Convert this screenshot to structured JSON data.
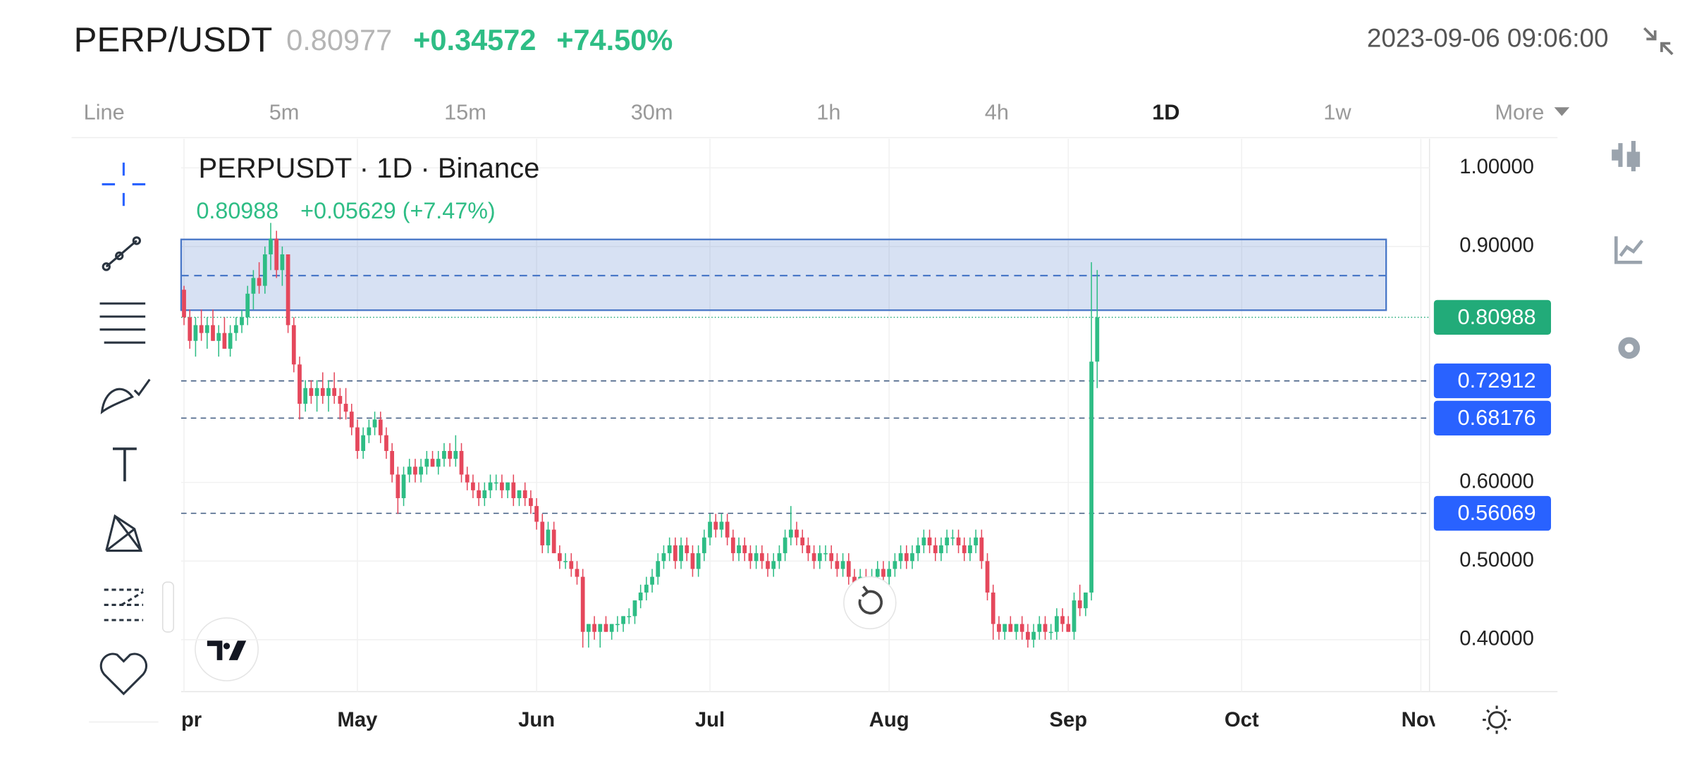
{
  "header": {
    "symbol": "PERP/USDT",
    "price": "0.80977",
    "change": "+0.34572",
    "change_pct": "+74.50%",
    "datetime": "2023-09-06 09:06:00"
  },
  "timeframes": {
    "items": [
      "Line",
      "5m",
      "15m",
      "30m",
      "1h",
      "4h",
      "1D",
      "1w",
      "More"
    ],
    "active": 6
  },
  "chart_data": {
    "type": "candlestick",
    "title": "PERPUSDT · 1D · Binance",
    "last": "0.80988",
    "last_change": "+0.05629 (+7.47%)",
    "up_color": "#2ebd85",
    "down_color": "#e5485c",
    "xlim": [
      -0.5,
      215.5
    ],
    "xticks": [
      {
        "value": 0,
        "label": "Apr"
      },
      {
        "value": 30,
        "label": "May"
      },
      {
        "value": 61,
        "label": "Jun"
      },
      {
        "value": 91,
        "label": "Jul"
      },
      {
        "value": 122,
        "label": "Aug"
      },
      {
        "value": 153,
        "label": "Sep"
      },
      {
        "value": 183,
        "label": "Oct"
      },
      {
        "value": 214,
        "label": "Nov"
      }
    ],
    "ylim": [
      0.334,
      1.037
    ],
    "yticks": [
      {
        "value": 0.4,
        "label": "0.40000"
      },
      {
        "value": 0.5,
        "label": "0.50000"
      },
      {
        "value": 0.6,
        "label": "0.60000"
      },
      {
        "value": 0.9,
        "label": "0.90000"
      },
      {
        "value": 1.0,
        "label": "1.00000"
      }
    ],
    "grid": true,
    "last_price": {
      "value": 0.80988,
      "color": "#22ab79"
    },
    "levels": [
      {
        "value": 0.72912,
        "color": "#2962ff"
      },
      {
        "value": 0.68176,
        "color": "#2962ff"
      },
      {
        "value": 0.56069,
        "color": "#2962ff"
      }
    ],
    "zone": {
      "from": 0.819,
      "to": 0.909,
      "mid": 0.863,
      "color": "#4a78c8"
    },
    "ohlc": [
      [
        0.845,
        0.85,
        0.8,
        0.81
      ],
      [
        0.81,
        0.82,
        0.77,
        0.78
      ],
      [
        0.78,
        0.81,
        0.76,
        0.8
      ],
      [
        0.8,
        0.82,
        0.78,
        0.79
      ],
      [
        0.79,
        0.81,
        0.77,
        0.8
      ],
      [
        0.8,
        0.82,
        0.78,
        0.78
      ],
      [
        0.78,
        0.8,
        0.76,
        0.79
      ],
      [
        0.79,
        0.81,
        0.77,
        0.77
      ],
      [
        0.77,
        0.8,
        0.76,
        0.79
      ],
      [
        0.79,
        0.81,
        0.78,
        0.8
      ],
      [
        0.8,
        0.82,
        0.79,
        0.81
      ],
      [
        0.81,
        0.85,
        0.8,
        0.84
      ],
      [
        0.84,
        0.87,
        0.82,
        0.86
      ],
      [
        0.86,
        0.88,
        0.84,
        0.85
      ],
      [
        0.85,
        0.9,
        0.84,
        0.89
      ],
      [
        0.89,
        0.93,
        0.87,
        0.91
      ],
      [
        0.91,
        0.92,
        0.86,
        0.87
      ],
      [
        0.87,
        0.9,
        0.85,
        0.89
      ],
      [
        0.89,
        0.89,
        0.79,
        0.8
      ],
      [
        0.8,
        0.81,
        0.74,
        0.75
      ],
      [
        0.75,
        0.76,
        0.68,
        0.7
      ],
      [
        0.7,
        0.73,
        0.69,
        0.72
      ],
      [
        0.72,
        0.73,
        0.7,
        0.71
      ],
      [
        0.71,
        0.73,
        0.69,
        0.72
      ],
      [
        0.72,
        0.74,
        0.7,
        0.71
      ],
      [
        0.71,
        0.73,
        0.69,
        0.72
      ],
      [
        0.72,
        0.74,
        0.7,
        0.71
      ],
      [
        0.71,
        0.72,
        0.68,
        0.7
      ],
      [
        0.7,
        0.72,
        0.68,
        0.69
      ],
      [
        0.69,
        0.7,
        0.66,
        0.67
      ],
      [
        0.67,
        0.68,
        0.63,
        0.64
      ],
      [
        0.64,
        0.67,
        0.63,
        0.66
      ],
      [
        0.66,
        0.68,
        0.65,
        0.67
      ],
      [
        0.67,
        0.69,
        0.66,
        0.68
      ],
      [
        0.68,
        0.69,
        0.65,
        0.66
      ],
      [
        0.66,
        0.67,
        0.63,
        0.64
      ],
      [
        0.64,
        0.65,
        0.6,
        0.61
      ],
      [
        0.61,
        0.62,
        0.56,
        0.58
      ],
      [
        0.58,
        0.62,
        0.57,
        0.61
      ],
      [
        0.61,
        0.63,
        0.6,
        0.62
      ],
      [
        0.62,
        0.63,
        0.6,
        0.61
      ],
      [
        0.61,
        0.63,
        0.6,
        0.62
      ],
      [
        0.62,
        0.64,
        0.61,
        0.63
      ],
      [
        0.63,
        0.64,
        0.62,
        0.62
      ],
      [
        0.62,
        0.64,
        0.61,
        0.63
      ],
      [
        0.63,
        0.65,
        0.62,
        0.64
      ],
      [
        0.64,
        0.65,
        0.62,
        0.63
      ],
      [
        0.63,
        0.66,
        0.62,
        0.64
      ],
      [
        0.64,
        0.65,
        0.6,
        0.61
      ],
      [
        0.61,
        0.62,
        0.59,
        0.6
      ],
      [
        0.6,
        0.61,
        0.58,
        0.59
      ],
      [
        0.59,
        0.6,
        0.57,
        0.58
      ],
      [
        0.58,
        0.6,
        0.57,
        0.59
      ],
      [
        0.59,
        0.61,
        0.58,
        0.6
      ],
      [
        0.6,
        0.61,
        0.59,
        0.6
      ],
      [
        0.6,
        0.61,
        0.58,
        0.59
      ],
      [
        0.59,
        0.6,
        0.58,
        0.6
      ],
      [
        0.6,
        0.61,
        0.57,
        0.58
      ],
      [
        0.58,
        0.59,
        0.57,
        0.59
      ],
      [
        0.59,
        0.6,
        0.57,
        0.58
      ],
      [
        0.58,
        0.59,
        0.56,
        0.57
      ],
      [
        0.57,
        0.58,
        0.54,
        0.55
      ],
      [
        0.55,
        0.56,
        0.51,
        0.52
      ],
      [
        0.52,
        0.55,
        0.51,
        0.54
      ],
      [
        0.54,
        0.55,
        0.51,
        0.51
      ],
      [
        0.51,
        0.52,
        0.49,
        0.5
      ],
      [
        0.5,
        0.51,
        0.49,
        0.5
      ],
      [
        0.5,
        0.51,
        0.48,
        0.49
      ],
      [
        0.49,
        0.5,
        0.47,
        0.48
      ],
      [
        0.48,
        0.49,
        0.39,
        0.41
      ],
      [
        0.41,
        0.42,
        0.39,
        0.42
      ],
      [
        0.42,
        0.43,
        0.4,
        0.41
      ],
      [
        0.41,
        0.42,
        0.39,
        0.42
      ],
      [
        0.42,
        0.43,
        0.41,
        0.41
      ],
      [
        0.41,
        0.42,
        0.4,
        0.42
      ],
      [
        0.42,
        0.43,
        0.41,
        0.42
      ],
      [
        0.42,
        0.43,
        0.41,
        0.43
      ],
      [
        0.43,
        0.44,
        0.42,
        0.43
      ],
      [
        0.43,
        0.45,
        0.42,
        0.45
      ],
      [
        0.45,
        0.47,
        0.44,
        0.46
      ],
      [
        0.46,
        0.48,
        0.45,
        0.47
      ],
      [
        0.47,
        0.49,
        0.46,
        0.48
      ],
      [
        0.48,
        0.51,
        0.47,
        0.5
      ],
      [
        0.5,
        0.52,
        0.49,
        0.51
      ],
      [
        0.51,
        0.53,
        0.5,
        0.52
      ],
      [
        0.52,
        0.53,
        0.49,
        0.5
      ],
      [
        0.5,
        0.53,
        0.49,
        0.52
      ],
      [
        0.52,
        0.53,
        0.5,
        0.51
      ],
      [
        0.51,
        0.52,
        0.48,
        0.49
      ],
      [
        0.49,
        0.52,
        0.48,
        0.51
      ],
      [
        0.51,
        0.54,
        0.5,
        0.53
      ],
      [
        0.53,
        0.56,
        0.52,
        0.55
      ],
      [
        0.55,
        0.56,
        0.53,
        0.54
      ],
      [
        0.54,
        0.56,
        0.53,
        0.55
      ],
      [
        0.55,
        0.56,
        0.52,
        0.53
      ],
      [
        0.53,
        0.54,
        0.5,
        0.51
      ],
      [
        0.51,
        0.53,
        0.5,
        0.52
      ],
      [
        0.52,
        0.53,
        0.5,
        0.51
      ],
      [
        0.51,
        0.52,
        0.49,
        0.5
      ],
      [
        0.5,
        0.52,
        0.49,
        0.51
      ],
      [
        0.51,
        0.52,
        0.49,
        0.5
      ],
      [
        0.5,
        0.51,
        0.48,
        0.49
      ],
      [
        0.49,
        0.51,
        0.48,
        0.5
      ],
      [
        0.5,
        0.52,
        0.49,
        0.51
      ],
      [
        0.51,
        0.54,
        0.5,
        0.53
      ],
      [
        0.53,
        0.57,
        0.52,
        0.54
      ],
      [
        0.54,
        0.55,
        0.52,
        0.53
      ],
      [
        0.53,
        0.54,
        0.51,
        0.52
      ],
      [
        0.52,
        0.53,
        0.5,
        0.51
      ],
      [
        0.51,
        0.52,
        0.49,
        0.5
      ],
      [
        0.5,
        0.52,
        0.49,
        0.51
      ],
      [
        0.51,
        0.52,
        0.5,
        0.51
      ],
      [
        0.51,
        0.52,
        0.49,
        0.5
      ],
      [
        0.5,
        0.51,
        0.48,
        0.49
      ],
      [
        0.49,
        0.51,
        0.48,
        0.5
      ],
      [
        0.5,
        0.51,
        0.47,
        0.48
      ],
      [
        0.48,
        0.49,
        0.46,
        0.47
      ],
      [
        0.47,
        0.49,
        0.46,
        0.48
      ],
      [
        0.48,
        0.49,
        0.46,
        0.47
      ],
      [
        0.47,
        0.49,
        0.46,
        0.48
      ],
      [
        0.48,
        0.5,
        0.47,
        0.49
      ],
      [
        0.49,
        0.5,
        0.47,
        0.48
      ],
      [
        0.48,
        0.5,
        0.47,
        0.49
      ],
      [
        0.49,
        0.51,
        0.48,
        0.5
      ],
      [
        0.5,
        0.52,
        0.49,
        0.51
      ],
      [
        0.51,
        0.52,
        0.49,
        0.5
      ],
      [
        0.5,
        0.52,
        0.49,
        0.51
      ],
      [
        0.51,
        0.53,
        0.5,
        0.52
      ],
      [
        0.52,
        0.54,
        0.51,
        0.53
      ],
      [
        0.53,
        0.54,
        0.51,
        0.52
      ],
      [
        0.52,
        0.53,
        0.5,
        0.51
      ],
      [
        0.51,
        0.53,
        0.5,
        0.52
      ],
      [
        0.52,
        0.54,
        0.51,
        0.53
      ],
      [
        0.53,
        0.54,
        0.52,
        0.53
      ],
      [
        0.53,
        0.54,
        0.51,
        0.52
      ],
      [
        0.52,
        0.53,
        0.5,
        0.51
      ],
      [
        0.51,
        0.53,
        0.5,
        0.52
      ],
      [
        0.52,
        0.54,
        0.51,
        0.53
      ],
      [
        0.53,
        0.54,
        0.49,
        0.5
      ],
      [
        0.5,
        0.51,
        0.45,
        0.46
      ],
      [
        0.46,
        0.47,
        0.4,
        0.42
      ],
      [
        0.42,
        0.43,
        0.4,
        0.41
      ],
      [
        0.41,
        0.42,
        0.4,
        0.42
      ],
      [
        0.42,
        0.43,
        0.41,
        0.41
      ],
      [
        0.41,
        0.42,
        0.4,
        0.42
      ],
      [
        0.42,
        0.43,
        0.4,
        0.41
      ],
      [
        0.41,
        0.42,
        0.39,
        0.4
      ],
      [
        0.4,
        0.42,
        0.39,
        0.41
      ],
      [
        0.41,
        0.43,
        0.4,
        0.42
      ],
      [
        0.42,
        0.43,
        0.4,
        0.41
      ],
      [
        0.41,
        0.42,
        0.4,
        0.41
      ],
      [
        0.41,
        0.44,
        0.4,
        0.43
      ],
      [
        0.43,
        0.44,
        0.41,
        0.42
      ],
      [
        0.42,
        0.43,
        0.41,
        0.41
      ],
      [
        0.41,
        0.46,
        0.4,
        0.45
      ],
      [
        0.45,
        0.47,
        0.43,
        0.44
      ],
      [
        0.44,
        0.46,
        0.43,
        0.46
      ],
      [
        0.46,
        0.88,
        0.45,
        0.75359
      ],
      [
        0.75359,
        0.87,
        0.72,
        0.80988
      ]
    ]
  }
}
